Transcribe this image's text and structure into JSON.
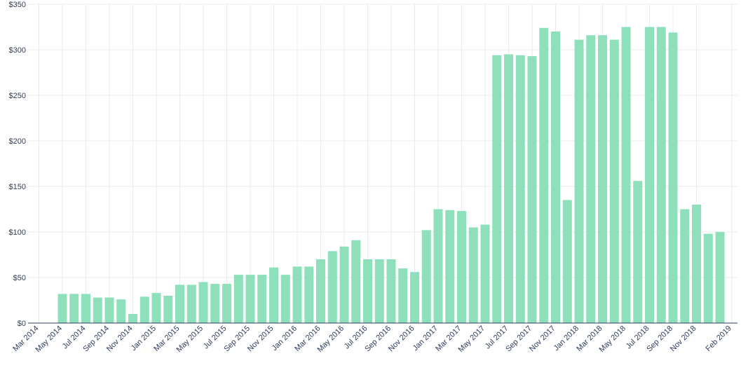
{
  "chart_data": {
    "type": "bar",
    "categories": [
      "Mar 2014",
      null,
      "May 2014",
      null,
      "Jul 2014",
      null,
      "Sep 2014",
      null,
      "Nov 2014",
      null,
      "Jan 2015",
      null,
      "Mar 2015",
      null,
      "May 2015",
      null,
      "Jul 2015",
      null,
      "Sep 2015",
      null,
      "Nov 2015",
      null,
      "Jan 2016",
      null,
      "Mar 2016",
      null,
      "May 2016",
      null,
      "Jul 2016",
      null,
      "Sep 2016",
      null,
      "Nov 2016",
      null,
      "Jan 2017",
      null,
      "Mar 2017",
      null,
      "May 2017",
      null,
      "Jul 2017",
      null,
      "Sep 2017",
      null,
      "Nov 2017",
      null,
      "Jan 2018",
      null,
      "Mar 2018",
      null,
      "May 2018",
      null,
      "Jul 2018",
      null,
      "Sep 2018",
      null,
      "Nov 2018",
      null,
      null,
      "Feb 2019"
    ],
    "values": [
      null,
      null,
      32,
      32,
      32,
      28,
      28,
      26,
      10,
      29,
      33,
      30,
      42,
      42,
      45,
      43,
      43,
      53,
      53,
      53,
      61,
      53,
      62,
      62,
      70,
      79,
      84,
      91,
      70,
      70,
      70,
      60,
      56,
      102,
      125,
      124,
      123,
      105,
      108,
      294,
      295,
      294,
      293,
      324,
      320,
      135,
      311,
      316,
      316,
      311,
      325,
      156,
      325,
      325,
      319,
      125,
      130,
      98,
      100,
      null
    ],
    "color": "#8ee0bb",
    "ylim": [
      0,
      350
    ],
    "yticks": [
      {
        "value": 0,
        "label": "$0"
      },
      {
        "value": 50,
        "label": "$50"
      },
      {
        "value": 100,
        "label": "$100"
      },
      {
        "value": 150,
        "label": "$150"
      },
      {
        "value": 200,
        "label": "$200"
      },
      {
        "value": 250,
        "label": "$250"
      },
      {
        "value": 300,
        "label": "$300"
      },
      {
        "value": 350,
        "label": "$350"
      }
    ],
    "grid": true
  }
}
